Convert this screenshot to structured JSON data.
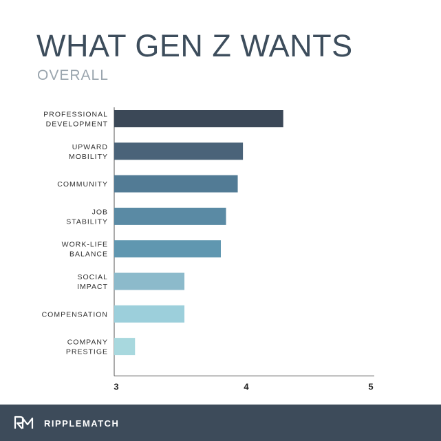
{
  "header": {
    "title": "WHAT GEN Z WANTS",
    "subtitle": "OVERALL"
  },
  "footer": {
    "brand": "RIPPLEMATCH",
    "logo_icon": "rm-logo-icon"
  },
  "chart_data": {
    "type": "bar",
    "orientation": "horizontal",
    "title": "WHAT GEN Z WANTS",
    "subtitle": "OVERALL",
    "categories": [
      [
        "PROFESSIONAL",
        "DEVELOPMENT"
      ],
      [
        "UPWARD",
        "MOBILITY"
      ],
      [
        "COMMUNITY"
      ],
      [
        "JOB",
        "STABILITY"
      ],
      [
        "WORK-LIFE",
        "BALANCE"
      ],
      [
        "SOCIAL",
        "IMPACT"
      ],
      [
        "COMPENSATION"
      ],
      [
        "COMPANY",
        "PRESTIGE"
      ]
    ],
    "values": [
      4.3,
      3.99,
      3.95,
      3.86,
      3.82,
      3.54,
      3.54,
      3.16
    ],
    "colors": [
      "#3b4857",
      "#4a6379",
      "#527b95",
      "#5a8aa4",
      "#6097b0",
      "#8cbacb",
      "#9ccfdb",
      "#a8d8de"
    ],
    "xlim": [
      3,
      5
    ],
    "xticks": [
      "3",
      "4",
      "5"
    ],
    "xlabel": "",
    "ylabel": ""
  }
}
